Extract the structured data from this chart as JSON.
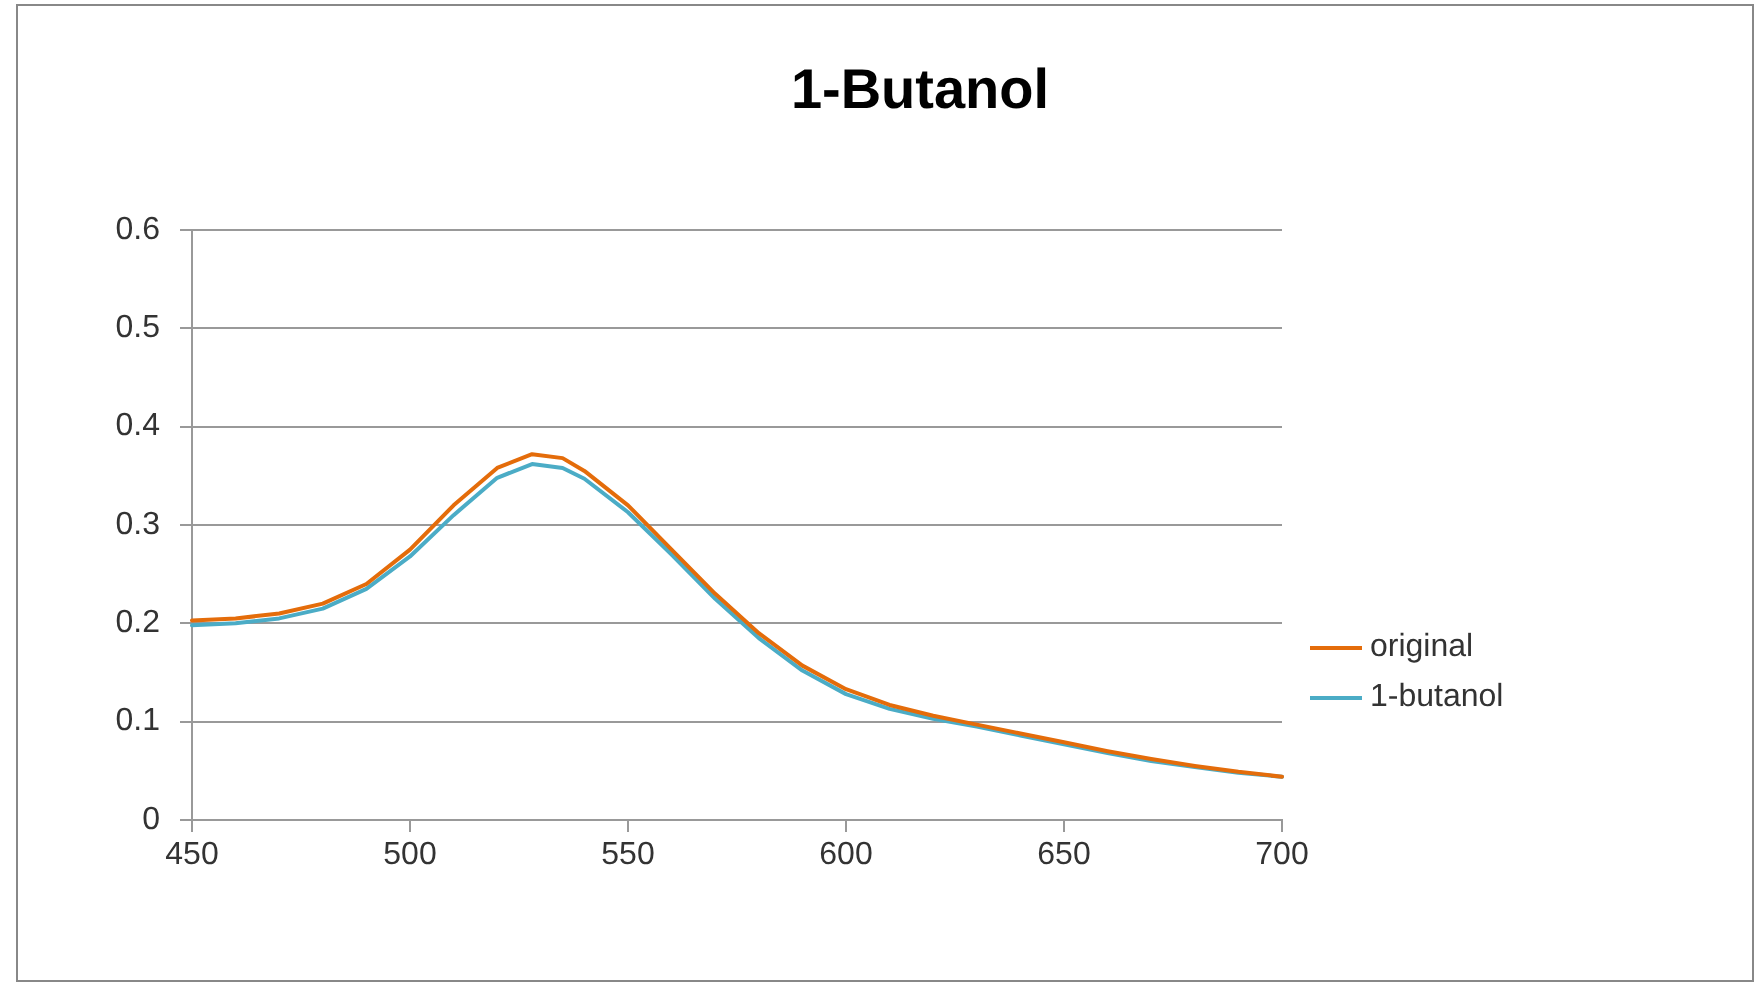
{
  "chart_data": {
    "type": "line",
    "title": "1-Butanol",
    "x": [
      450,
      460,
      470,
      480,
      490,
      500,
      510,
      520,
      528,
      535,
      540,
      550,
      560,
      570,
      580,
      590,
      600,
      610,
      620,
      630,
      640,
      650,
      660,
      670,
      680,
      690,
      700
    ],
    "series": [
      {
        "name": "original",
        "color": "#e46c0a",
        "values": [
          0.203,
          0.205,
          0.21,
          0.22,
          0.24,
          0.275,
          0.32,
          0.358,
          0.372,
          0.368,
          0.355,
          0.32,
          0.275,
          0.23,
          0.19,
          0.157,
          0.133,
          0.117,
          0.106,
          0.097,
          0.088,
          0.079,
          0.07,
          0.062,
          0.055,
          0.049,
          0.044
        ]
      },
      {
        "name": "1-butanol",
        "color": "#4bacc6",
        "values": [
          0.198,
          0.2,
          0.205,
          0.215,
          0.235,
          0.268,
          0.31,
          0.348,
          0.362,
          0.358,
          0.347,
          0.313,
          0.27,
          0.225,
          0.185,
          0.152,
          0.128,
          0.113,
          0.103,
          0.095,
          0.086,
          0.077,
          0.068,
          0.06,
          0.054,
          0.048,
          0.044
        ]
      }
    ],
    "xlim": [
      450,
      700
    ],
    "xticks": [
      450,
      500,
      550,
      600,
      650,
      700
    ],
    "ylim": [
      0,
      0.6
    ],
    "yticks": [
      0,
      0.1,
      0.2,
      0.3,
      0.4,
      0.5,
      0.6
    ],
    "grid": "y",
    "legend": "right",
    "marker": "none",
    "line_style": "solid"
  }
}
